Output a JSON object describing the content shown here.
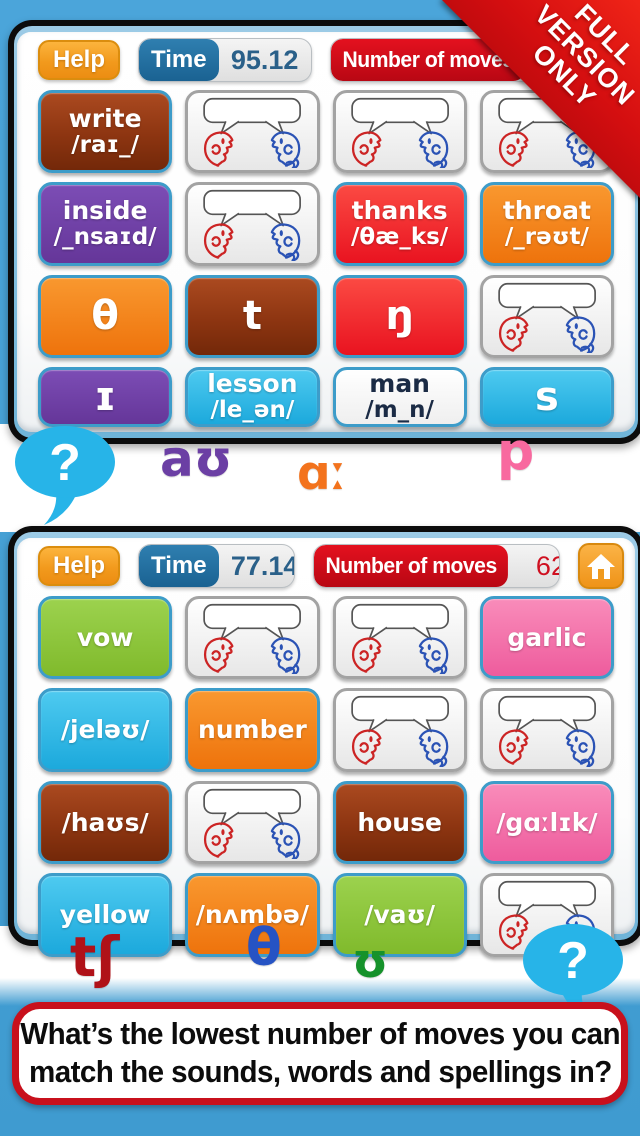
{
  "ribbon": {
    "lines": [
      "FULL",
      "VERSION",
      "ONLY"
    ]
  },
  "question_mark": "?",
  "boards": [
    {
      "help_label": "Help",
      "time_label": "Time",
      "time_value": "95.12",
      "moves_label": "Number of moves",
      "moves_value": "",
      "has_home": false,
      "cards": [
        {
          "type": "word",
          "text": "write",
          "sub": "/raɪ_/",
          "color": "brown"
        },
        {
          "type": "faces"
        },
        {
          "type": "faces"
        },
        {
          "type": "faces"
        },
        {
          "type": "word",
          "text": "inside",
          "sub": "/_nsaɪd/",
          "color": "purple"
        },
        {
          "type": "faces"
        },
        {
          "type": "word",
          "text": "thanks",
          "sub": "/θæ_ks/",
          "color": "red"
        },
        {
          "type": "word",
          "text": "throat",
          "sub": "/_rəʊt/",
          "color": "orange"
        },
        {
          "type": "symbol",
          "text": "θ",
          "color": "orange"
        },
        {
          "type": "symbol",
          "text": "t",
          "color": "brown"
        },
        {
          "type": "symbol",
          "text": "ŋ",
          "color": "red"
        },
        {
          "type": "faces"
        },
        {
          "type": "symbol",
          "text": "ɪ",
          "color": "purple"
        },
        {
          "type": "word",
          "text": "lesson",
          "sub": "/le_ən/",
          "color": "cyan"
        },
        {
          "type": "word",
          "text": "man",
          "sub": "/m_n/",
          "color": "white"
        },
        {
          "type": "symbol",
          "text": "s",
          "color": "cyan"
        }
      ]
    },
    {
      "help_label": "Help",
      "time_label": "Time",
      "time_value": "77.14",
      "moves_label": "Number of moves",
      "moves_value": "62",
      "has_home": true,
      "cards": [
        {
          "type": "word",
          "text": "vow",
          "color": "green"
        },
        {
          "type": "faces"
        },
        {
          "type": "faces"
        },
        {
          "type": "word",
          "text": "garlic",
          "color": "pink"
        },
        {
          "type": "word",
          "text": "/jeləʊ/",
          "color": "cyan"
        },
        {
          "type": "word",
          "text": "number",
          "color": "orange"
        },
        {
          "type": "faces"
        },
        {
          "type": "faces"
        },
        {
          "type": "word",
          "text": "/haʊs/",
          "color": "brown"
        },
        {
          "type": "faces"
        },
        {
          "type": "word",
          "text": "house",
          "color": "brown"
        },
        {
          "type": "word",
          "text": "/gɑːlɪk/",
          "color": "pink"
        },
        {
          "type": "word",
          "text": "yellow",
          "color": "cyan"
        },
        {
          "type": "word",
          "text": "/nʌmbə/",
          "color": "orange"
        },
        {
          "type": "word",
          "text": "/vaʊ/",
          "color": "green"
        },
        {
          "type": "faces"
        }
      ]
    }
  ],
  "floating_symbols": {
    "middle": [
      {
        "id": "au",
        "text": "aʊ",
        "color": "#6b3fa4"
      },
      {
        "id": "ah",
        "text": "ɑː",
        "color": "#f3731d"
      },
      {
        "id": "p",
        "text": "p",
        "color": "#f8699f"
      }
    ],
    "bottom": [
      {
        "id": "tsh",
        "text": "tʃ",
        "color": "#b01218"
      },
      {
        "id": "theta",
        "text": "θ",
        "color": "#2653c4"
      },
      {
        "id": "uh",
        "text": "ʊ",
        "color": "#16922b"
      }
    ]
  },
  "footer": {
    "line1": "What’s the lowest number of moves you can",
    "line2": "match the sounds, words and spellings in?"
  }
}
